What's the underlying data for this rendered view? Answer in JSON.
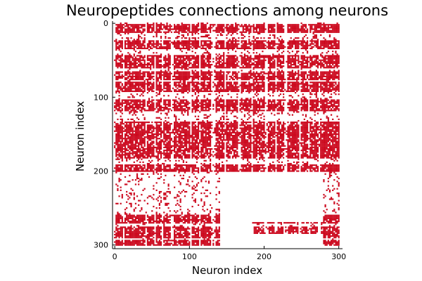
{
  "chart_data": {
    "type": "scatter",
    "title": "Neuropeptides connections among neurons",
    "xlabel": "Neuron index",
    "ylabel": "Neuron index",
    "xlim": [
      -3,
      305
    ],
    "ylim": [
      305,
      -3
    ],
    "y_axis_inverted": true,
    "grid": false,
    "legend": "none",
    "marker": "small-filled-square",
    "xticks": [
      0,
      100,
      200,
      300
    ],
    "yticks": [
      0,
      100,
      200,
      300
    ],
    "color": "#cc0a1f",
    "series": [
      {
        "row_bands": [
          [
            2,
            12
          ],
          [
            24,
            34
          ],
          [
            44,
            60
          ],
          [
            66,
            76
          ],
          [
            80,
            92
          ],
          [
            104,
            118
          ],
          [
            134,
            158
          ],
          [
            160,
            182
          ],
          [
            192,
            200
          ],
          [
            260,
            270
          ],
          [
            276,
            290
          ],
          [
            294,
            300
          ]
        ],
        "column_bands": [
          [
            2,
            10
          ],
          [
            14,
            20
          ],
          [
            22,
            30
          ],
          [
            32,
            40
          ],
          [
            44,
            52
          ],
          [
            56,
            62
          ],
          [
            66,
            74
          ],
          [
            80,
            100
          ],
          [
            104,
            112
          ],
          [
            116,
            128
          ],
          [
            136,
            146
          ],
          [
            150,
            164
          ],
          [
            170,
            182
          ],
          [
            186,
            200
          ],
          [
            206,
            214
          ],
          [
            218,
            226
          ],
          [
            232,
            246
          ],
          [
            250,
            258
          ],
          [
            262,
            272
          ],
          [
            276,
            286
          ],
          [
            288,
            300
          ]
        ],
        "row_profiles": [
          {
            "rows": [
              0,
              20
            ],
            "columns": [
              0,
              300
            ]
          },
          {
            "rows": [
              20,
              200
            ],
            "columns": [
              0,
              300
            ]
          },
          {
            "rows": [
              200,
              300
            ],
            "columns": [
              0,
              140
            ]
          },
          {
            "rows": [
              200,
              300
            ],
            "columns": [
              280,
              300
            ]
          },
          {
            "rows": [
              270,
              285
            ],
            "columns": [
              185,
              280
            ]
          }
        ]
      }
    ]
  }
}
